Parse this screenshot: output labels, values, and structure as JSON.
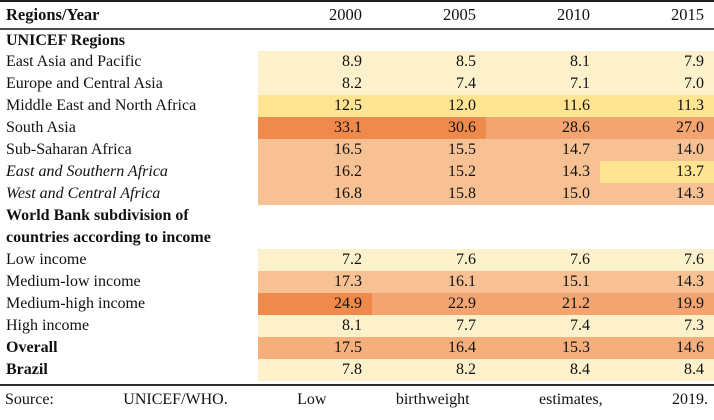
{
  "header": {
    "label": "Regions/Year",
    "years": [
      "2000",
      "2005",
      "2010",
      "2015"
    ]
  },
  "palette": {
    "cream": "#FDF1CB",
    "yellow": "#FFE492",
    "light": "#F7C193",
    "midlight": "#F4AF7D",
    "mid": "#F3A571",
    "dark": "#EE8A4C"
  },
  "table": {
    "rows": [
      {
        "section": true,
        "style": "bold",
        "label": "UNICEF Regions"
      },
      {
        "style": "normal",
        "label": "East Asia and Pacific",
        "cells": [
          {
            "v": "8.9",
            "c": "cream"
          },
          {
            "v": "8.5",
            "c": "cream"
          },
          {
            "v": "8.1",
            "c": "cream"
          },
          {
            "v": "7.9",
            "c": "cream"
          }
        ]
      },
      {
        "style": "normal",
        "label": "Europe and Central Asia",
        "cells": [
          {
            "v": "8.2",
            "c": "cream"
          },
          {
            "v": "7.4",
            "c": "cream"
          },
          {
            "v": "7.1",
            "c": "cream"
          },
          {
            "v": "7.0",
            "c": "cream"
          }
        ]
      },
      {
        "style": "normal",
        "label": "Middle East and North Africa",
        "cells": [
          {
            "v": "12.5",
            "c": "yellow"
          },
          {
            "v": "12.0",
            "c": "yellow"
          },
          {
            "v": "11.6",
            "c": "yellow"
          },
          {
            "v": "11.3",
            "c": "yellow"
          }
        ]
      },
      {
        "style": "normal",
        "label": "South Asia",
        "cells": [
          {
            "v": "33.1",
            "c": "dark"
          },
          {
            "v": "30.6",
            "c": "dark"
          },
          {
            "v": "28.6",
            "c": "mid"
          },
          {
            "v": "27.0",
            "c": "mid"
          }
        ]
      },
      {
        "style": "normal",
        "label": "Sub-Saharan Africa",
        "cells": [
          {
            "v": "16.5",
            "c": "light"
          },
          {
            "v": "15.5",
            "c": "light"
          },
          {
            "v": "14.7",
            "c": "light"
          },
          {
            "v": "14.0",
            "c": "light"
          }
        ]
      },
      {
        "style": "italic",
        "label": "East and Southern Africa",
        "cells": [
          {
            "v": "16.2",
            "c": "light"
          },
          {
            "v": "15.2",
            "c": "light"
          },
          {
            "v": "14.3",
            "c": "light"
          },
          {
            "v": "13.7",
            "c": "yellow"
          }
        ]
      },
      {
        "style": "italic",
        "label": "West and Central Africa",
        "cells": [
          {
            "v": "16.8",
            "c": "light"
          },
          {
            "v": "15.8",
            "c": "light"
          },
          {
            "v": "15.0",
            "c": "light"
          },
          {
            "v": "14.3",
            "c": "light"
          }
        ]
      },
      {
        "section": true,
        "wrap": true,
        "style": "bold",
        "label": "World Bank subdivision of countries according to income"
      },
      {
        "style": "normal",
        "label": "Low income",
        "cells": [
          {
            "v": "7.2",
            "c": "cream"
          },
          {
            "v": "7.6",
            "c": "cream"
          },
          {
            "v": "7.6",
            "c": "cream"
          },
          {
            "v": "7.6",
            "c": "cream"
          }
        ]
      },
      {
        "style": "normal",
        "label": "Medium-low income",
        "cells": [
          {
            "v": "17.3",
            "c": "light"
          },
          {
            "v": "16.1",
            "c": "light"
          },
          {
            "v": "15.1",
            "c": "light"
          },
          {
            "v": "14.3",
            "c": "light"
          }
        ]
      },
      {
        "style": "normal",
        "label": "Medium-high income",
        "cells": [
          {
            "v": "24.9",
            "c": "dark"
          },
          {
            "v": "22.9",
            "c": "mid"
          },
          {
            "v": "21.2",
            "c": "mid"
          },
          {
            "v": "19.9",
            "c": "mid"
          }
        ]
      },
      {
        "style": "normal",
        "label": "High income",
        "cells": [
          {
            "v": "8.1",
            "c": "cream"
          },
          {
            "v": "7.7",
            "c": "cream"
          },
          {
            "v": "7.4",
            "c": "cream"
          },
          {
            "v": "7.3",
            "c": "cream"
          }
        ]
      },
      {
        "style": "bold",
        "label": "Overall",
        "cells": [
          {
            "v": "17.5",
            "c": "midlight"
          },
          {
            "v": "16.4",
            "c": "midlight"
          },
          {
            "v": "15.3",
            "c": "midlight"
          },
          {
            "v": "14.6",
            "c": "midlight"
          }
        ]
      },
      {
        "style": "bold",
        "label": "Brazil",
        "cells": [
          {
            "v": "7.8",
            "c": "cream"
          },
          {
            "v": "8.2",
            "c": "cream"
          },
          {
            "v": "8.4",
            "c": "cream"
          },
          {
            "v": "8.4",
            "c": "cream"
          }
        ]
      }
    ]
  },
  "source": {
    "words": [
      "Source:",
      "UNICEF/WHO.",
      "Low",
      "birthweight",
      "estimates,",
      "2019."
    ]
  }
}
